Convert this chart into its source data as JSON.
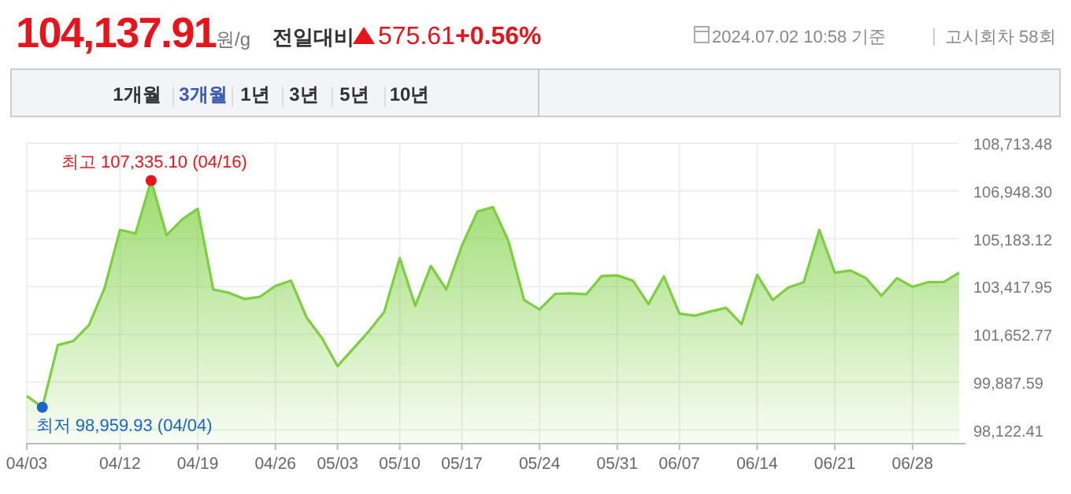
{
  "chart_data": {
    "type": "area",
    "categories": [
      "04/03",
      null,
      null,
      null,
      null,
      null,
      "04/12",
      null,
      null,
      null,
      null,
      "04/19",
      null,
      null,
      null,
      null,
      "04/26",
      null,
      null,
      null,
      "05/03",
      null,
      null,
      null,
      "05/10",
      null,
      null,
      null,
      "05/17",
      null,
      null,
      null,
      null,
      "05/24",
      null,
      null,
      null,
      null,
      "05/31",
      null,
      null,
      null,
      "06/07",
      null,
      null,
      null,
      null,
      "06/14",
      null,
      null,
      null,
      null,
      "06/21",
      null,
      null,
      null,
      null,
      "06/28",
      null,
      null,
      null
    ],
    "series": [
      {
        "color": "#7ccf3f",
        "values": [
          99380,
          98959.93,
          101260,
          101410,
          101990,
          103350,
          105510,
          105380,
          107335.1,
          105320,
          105900,
          106290,
          103310,
          103190,
          102960,
          103040,
          103440,
          103640,
          102280,
          101510,
          100480,
          101120,
          101760,
          102480,
          104470,
          102710,
          104180,
          103310,
          104930,
          106190,
          106350,
          105090,
          102920,
          102570,
          103150,
          103170,
          103130,
          103810,
          103830,
          103640,
          102770,
          103790,
          102420,
          102340,
          102500,
          102630,
          102030,
          103850,
          102920,
          103380,
          103580,
          105510,
          103930,
          104010,
          103730,
          103080,
          103730,
          103410,
          103580,
          103580,
          103930
        ]
      }
    ],
    "ylim": [
      97617,
      108713.48
    ],
    "yticks": [
      {
        "value": 98122.41,
        "label": "98,122.41"
      },
      {
        "value": 99887.59,
        "label": "99,887.59"
      },
      {
        "value": 101652.77,
        "label": "101,652.77"
      },
      {
        "value": 103417.95,
        "label": "103,417.95"
      },
      {
        "value": 105183.12,
        "label": "105,183.12"
      },
      {
        "value": 106948.3,
        "label": "106,948.30"
      },
      {
        "value": 108713.48,
        "label": "108,713.48"
      }
    ],
    "grid": true,
    "annotations": [
      "104,137.91",
      "원/g",
      "전일대비",
      "575.61",
      "+0.56%",
      "2024.07.02 10:58 기준",
      "고시회차 58회",
      "1개월",
      "3개월",
      "1년",
      "3년",
      "5년",
      "10년",
      "최고 107,335.10 (04/16)",
      "최저 98,959.93 (04/04)"
    ]
  }
}
